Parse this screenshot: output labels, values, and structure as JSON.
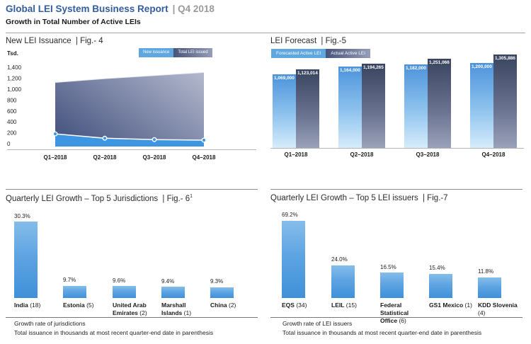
{
  "header": {
    "title": "Global LEI System Business Report",
    "period_label": "| Q4 2018",
    "subtitle": "Growth in Total Number of Active LEIs"
  },
  "colors": {
    "title_blue": "#335d9e",
    "period_gray": "#9b9b9b",
    "accent_blue": "#3e96e3",
    "light_bar_top": "#4c93db",
    "light_bar_bottom": "#d6ecfb",
    "dark_bar_top": "#39445f",
    "dark_bar_bottom": "#9aa2ba",
    "area_dark_left": "#4d5a85",
    "area_dark_right": "#b3b9cd",
    "small_bar_top": "#85bdea",
    "small_bar_bottom": "#3f90da"
  },
  "chart_data": [
    {
      "id": "fig4",
      "type": "area",
      "title": "New LEI Issuance",
      "fig_label": "| Fig.- 4",
      "unit_label": "Tsd.",
      "legend": [
        "New issuance",
        "Total LEI issued"
      ],
      "x": [
        "Q1–2018",
        "Q2–2018",
        "Q3–2018",
        "Q4–2018"
      ],
      "series": [
        {
          "name": "New issuance",
          "values": [
            180,
            100,
            75,
            65
          ]
        },
        {
          "name": "Total LEI issued",
          "values": [
            1123,
            1194,
            1251,
            1306
          ]
        }
      ],
      "ylim": [
        0,
        1400
      ],
      "ytick_step": 200,
      "yticks": [
        "0",
        "200",
        "400",
        "600",
        "800",
        "1,000",
        "1,200",
        "1,400"
      ],
      "grid": "off",
      "legend_position": "top-right"
    },
    {
      "id": "fig5",
      "type": "bar",
      "title": "LEI Forecast",
      "fig_label": "| Fig.-5",
      "legend": [
        "Forecasted Active LEI",
        "Actual Active LEI"
      ],
      "x": [
        "Q1–2018",
        "Q2–2018",
        "Q3–2018",
        "Q4–2018"
      ],
      "series": [
        {
          "name": "Forecasted Active LEI",
          "values": [
            1069000,
            1164000,
            1182000,
            1200000
          ],
          "labels": [
            "1,069,000",
            "1,164,000",
            "1,182,000",
            "1,200,000"
          ]
        },
        {
          "name": "Actual Active LEI",
          "values": [
            1123014,
            1194265,
            1251066,
            1305886
          ],
          "labels": [
            "1,123,014",
            "1,194,265",
            "1,251,066",
            "1,305,886"
          ]
        }
      ],
      "legend_position": "top-left"
    },
    {
      "id": "fig6",
      "type": "bar",
      "title": "Quarterly LEI Growth – Top 5 Jurisdictions",
      "fig_label": "| Fig.- 6",
      "fig_superscript": "1",
      "categories": [
        {
          "name": "India",
          "count": "(18)"
        },
        {
          "name": "Estonia",
          "count": "(5)"
        },
        {
          "name": "United Arab Emirates",
          "count": "(2)"
        },
        {
          "name": "Marshall Islands",
          "count": "(1)"
        },
        {
          "name": "China",
          "count": "(2)"
        }
      ],
      "values": [
        30.3,
        9.7,
        9.6,
        9.4,
        9.3
      ],
      "value_labels": [
        "30.3%",
        "9.7%",
        "9.6%",
        "9.4%",
        "9.3%"
      ],
      "footnotes": [
        "Growth rate of jurisdictions",
        "Total issuance in thousands at most recent quarter-end date in parenthesis"
      ]
    },
    {
      "id": "fig7",
      "type": "bar",
      "title": "Quarterly LEI Growth – Top 5 LEI issuers",
      "fig_label": "| Fig.-7",
      "categories": [
        {
          "name": "EQS",
          "count": "(34)"
        },
        {
          "name": "LEIL",
          "count": "(15)"
        },
        {
          "name": "Federal Statistical Office",
          "count": "(6)"
        },
        {
          "name": "GS1 Mexico",
          "count": "(1)"
        },
        {
          "name": "KDD Slovenia",
          "count": "(4)"
        }
      ],
      "values": [
        69.2,
        24.0,
        16.5,
        15.4,
        11.8
      ],
      "value_labels": [
        "69.2%",
        "24.0%",
        "16.5%",
        "15.4%",
        "11.8%"
      ],
      "footnotes": [
        "Growth rate of LEI issuers",
        "Total issuance in thousands at most recent quarter-end date in parenthesis"
      ]
    }
  ]
}
